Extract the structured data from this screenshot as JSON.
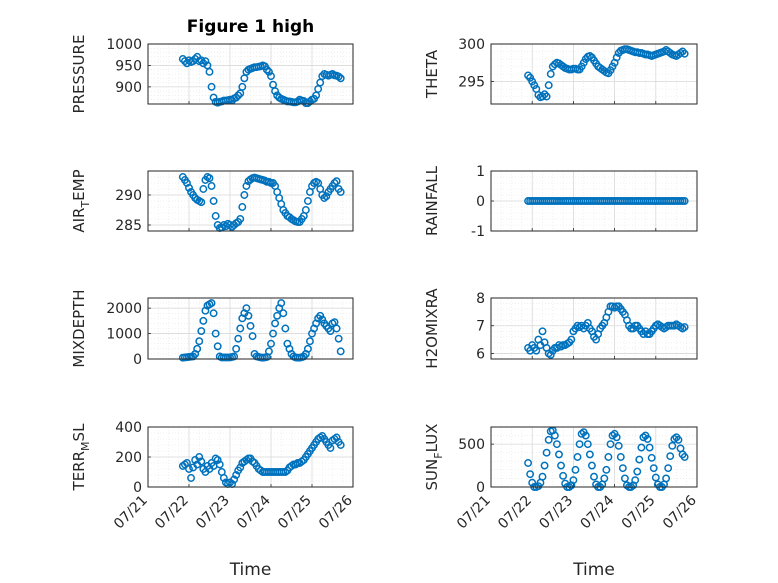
{
  "colors": {
    "marker": "#0072BD"
  },
  "chart_data": [
    {
      "type": "scatter",
      "title": "Figure 1 high",
      "ylabel": "PRESSURE",
      "xlim": [
        0,
        5
      ],
      "ylim": [
        860,
        1000
      ],
      "yticks": [
        {
          "v": 1000,
          "label": "1000"
        },
        {
          "v": 950,
          "label": "950"
        },
        {
          "v": 900,
          "label": "900"
        }
      ],
      "show_xticklabels": false,
      "x": [
        0.85,
        0.9,
        0.95,
        1.0,
        1.05,
        1.1,
        1.15,
        1.2,
        1.25,
        1.3,
        1.35,
        1.4,
        1.45,
        1.5,
        1.55,
        1.6,
        1.65,
        1.7,
        1.75,
        1.8,
        1.85,
        1.9,
        1.95,
        2.0,
        2.05,
        2.1,
        2.15,
        2.2,
        2.25,
        2.3,
        2.35,
        2.4,
        2.45,
        2.5,
        2.55,
        2.6,
        2.65,
        2.7,
        2.75,
        2.8,
        2.85,
        2.9,
        2.95,
        3.0,
        3.05,
        3.1,
        3.15,
        3.2,
        3.25,
        3.3,
        3.35,
        3.4,
        3.45,
        3.5,
        3.55,
        3.6,
        3.65,
        3.7,
        3.75,
        3.8,
        3.85,
        3.9,
        3.95,
        4.0,
        4.05,
        4.1,
        4.15,
        4.2,
        4.25,
        4.3,
        4.35,
        4.4,
        4.45,
        4.5,
        4.55,
        4.6,
        4.65,
        4.7
      ],
      "y": [
        965,
        960,
        955,
        962,
        958,
        960,
        965,
        970,
        960,
        962,
        955,
        960,
        950,
        935,
        900,
        875,
        865,
        863,
        865,
        866,
        868,
        868,
        869,
        870,
        868,
        873,
        875,
        880,
        885,
        900,
        920,
        935,
        940,
        942,
        944,
        946,
        946,
        947,
        948,
        950,
        948,
        940,
        935,
        925,
        905,
        890,
        880,
        875,
        872,
        870,
        868,
        866,
        866,
        865,
        864,
        864,
        866,
        870,
        868,
        867,
        862,
        862,
        866,
        870,
        872,
        880,
        895,
        910,
        925,
        930,
        928,
        926,
        928,
        930,
        927,
        926,
        924,
        920
      ]
    },
    {
      "type": "scatter",
      "title": "",
      "ylabel": "THETA",
      "xlim": [
        0,
        5
      ],
      "ylim": [
        292,
        300
      ],
      "yticks": [
        {
          "v": 300,
          "label": "300"
        },
        {
          "v": 295,
          "label": "295"
        }
      ],
      "show_xticklabels": false,
      "x": [
        0.9,
        0.95,
        1.0,
        1.05,
        1.1,
        1.15,
        1.2,
        1.25,
        1.3,
        1.35,
        1.4,
        1.45,
        1.5,
        1.55,
        1.6,
        1.65,
        1.7,
        1.75,
        1.8,
        1.85,
        1.9,
        1.95,
        2.0,
        2.05,
        2.1,
        2.15,
        2.2,
        2.25,
        2.3,
        2.35,
        2.4,
        2.45,
        2.5,
        2.55,
        2.6,
        2.65,
        2.7,
        2.75,
        2.8,
        2.85,
        2.9,
        2.95,
        3.0,
        3.05,
        3.1,
        3.15,
        3.2,
        3.25,
        3.3,
        3.35,
        3.4,
        3.45,
        3.5,
        3.55,
        3.6,
        3.65,
        3.7,
        3.75,
        3.8,
        3.85,
        3.9,
        3.95,
        4.0,
        4.05,
        4.1,
        4.15,
        4.2,
        4.25,
        4.3,
        4.35,
        4.4,
        4.45,
        4.5,
        4.55,
        4.6,
        4.65,
        4.7
      ],
      "y": [
        295.8,
        295.5,
        295.0,
        294.5,
        294.0,
        293.2,
        292.9,
        293.0,
        293.3,
        293.0,
        294.5,
        296.0,
        297.0,
        297.3,
        297.5,
        297.4,
        297.2,
        297.0,
        296.8,
        296.7,
        296.6,
        296.6,
        296.7,
        296.7,
        296.6,
        296.6,
        297.0,
        297.5,
        298.0,
        298.3,
        298.4,
        298.2,
        297.8,
        297.4,
        297.0,
        296.8,
        296.6,
        296.4,
        296.2,
        296.1,
        296.5,
        297.0,
        297.5,
        298.2,
        298.8,
        299.1,
        299.2,
        299.3,
        299.3,
        299.2,
        299.1,
        299.0,
        298.9,
        298.9,
        298.8,
        298.8,
        298.7,
        298.6,
        298.6,
        298.5,
        298.4,
        298.5,
        298.6,
        298.7,
        298.8,
        298.9,
        299.0,
        299.2,
        299.0,
        298.8,
        298.6,
        298.5,
        298.4,
        298.6,
        298.8,
        299.0,
        298.7
      ]
    },
    {
      "type": "scatter",
      "title": "",
      "ylabel": "AIR_TEMP",
      "ylabel_main": "AIR",
      "ylabel_sub": "T",
      "ylabel_rest": "EMP",
      "xlim": [
        0,
        5
      ],
      "ylim": [
        284,
        294
      ],
      "yticks": [
        {
          "v": 290,
          "label": "290"
        },
        {
          "v": 285,
          "label": "285"
        }
      ],
      "show_xticklabels": false,
      "x": [
        0.85,
        0.9,
        0.95,
        1.0,
        1.05,
        1.1,
        1.15,
        1.2,
        1.25,
        1.3,
        1.35,
        1.4,
        1.45,
        1.5,
        1.55,
        1.6,
        1.65,
        1.7,
        1.75,
        1.8,
        1.85,
        1.9,
        1.95,
        2.0,
        2.05,
        2.1,
        2.15,
        2.2,
        2.25,
        2.3,
        2.35,
        2.4,
        2.45,
        2.5,
        2.55,
        2.6,
        2.65,
        2.7,
        2.75,
        2.8,
        2.85,
        2.9,
        2.95,
        3.0,
        3.05,
        3.1,
        3.15,
        3.2,
        3.25,
        3.3,
        3.35,
        3.4,
        3.45,
        3.5,
        3.55,
        3.6,
        3.65,
        3.7,
        3.75,
        3.8,
        3.85,
        3.9,
        3.95,
        4.0,
        4.05,
        4.1,
        4.15,
        4.2,
        4.25,
        4.3,
        4.35,
        4.4,
        4.45,
        4.5,
        4.55,
        4.6,
        4.65,
        4.7
      ],
      "y": [
        293.0,
        292.5,
        292.0,
        291.2,
        290.5,
        290.0,
        289.5,
        289.2,
        289.0,
        288.8,
        291.0,
        292.5,
        293.0,
        292.8,
        291.5,
        289.0,
        286.5,
        285.0,
        284.5,
        284.6,
        285.0,
        284.8,
        285.2,
        285.0,
        284.7,
        285.0,
        285.3,
        285.5,
        286.0,
        288.0,
        290.0,
        291.5,
        292.3,
        292.6,
        292.8,
        292.9,
        292.8,
        292.7,
        292.6,
        292.5,
        292.4,
        292.2,
        292.2,
        292.0,
        292.0,
        291.5,
        290.5,
        289.5,
        288.5,
        287.5,
        287.0,
        286.5,
        286.3,
        286.0,
        285.8,
        285.6,
        285.5,
        285.5,
        286.0,
        286.5,
        287.5,
        289.0,
        290.5,
        291.5,
        292.0,
        292.2,
        292.0,
        291.0,
        290.0,
        289.5,
        289.8,
        290.5,
        291.0,
        291.5,
        292.0,
        292.3,
        291.0,
        290.5
      ]
    },
    {
      "type": "scatter",
      "title": "",
      "ylabel": "RAINFALL",
      "xlim": [
        0,
        5
      ],
      "ylim": [
        -1,
        1
      ],
      "yticks": [
        {
          "v": 1,
          "label": "1"
        },
        {
          "v": 0,
          "label": "0"
        },
        {
          "v": -1,
          "label": "-1"
        }
      ],
      "show_xticklabels": false,
      "x_start": 0.9,
      "x_end": 4.7,
      "x_step": 0.05,
      "y_const": 0
    },
    {
      "type": "scatter",
      "title": "",
      "ylabel": "MIXDEPTH",
      "xlim": [
        0,
        5
      ],
      "ylim": [
        0,
        2400
      ],
      "yticks": [
        {
          "v": 2000,
          "label": "2000"
        },
        {
          "v": 1000,
          "label": "1000"
        },
        {
          "v": 0,
          "label": "0"
        }
      ],
      "show_xticklabels": false,
      "x": [
        0.85,
        0.9,
        0.95,
        1.0,
        1.05,
        1.1,
        1.15,
        1.2,
        1.25,
        1.3,
        1.35,
        1.4,
        1.45,
        1.5,
        1.55,
        1.6,
        1.65,
        1.7,
        1.75,
        1.8,
        1.85,
        1.9,
        1.95,
        2.0,
        2.05,
        2.1,
        2.15,
        2.2,
        2.25,
        2.3,
        2.35,
        2.4,
        2.45,
        2.5,
        2.55,
        2.6,
        2.65,
        2.7,
        2.75,
        2.8,
        2.85,
        2.9,
        2.95,
        3.0,
        3.05,
        3.1,
        3.15,
        3.2,
        3.25,
        3.3,
        3.35,
        3.4,
        3.45,
        3.5,
        3.55,
        3.6,
        3.65,
        3.7,
        3.75,
        3.8,
        3.85,
        3.9,
        3.95,
        4.0,
        4.05,
        4.1,
        4.15,
        4.2,
        4.25,
        4.3,
        4.35,
        4.4,
        4.45,
        4.5,
        4.55,
        4.6,
        4.65,
        4.7
      ],
      "y": [
        50,
        60,
        70,
        80,
        90,
        100,
        200,
        400,
        700,
        1100,
        1500,
        1900,
        2100,
        2150,
        2200,
        1800,
        1000,
        500,
        100,
        60,
        60,
        60,
        60,
        60,
        80,
        100,
        400,
        800,
        1200,
        1600,
        1800,
        2000,
        1700,
        1300,
        900,
        200,
        100,
        80,
        60,
        50,
        60,
        80,
        300,
        600,
        1000,
        1400,
        1700,
        2000,
        2200,
        1800,
        1200,
        600,
        400,
        200,
        100,
        60,
        50,
        50,
        70,
        100,
        200,
        400,
        700,
        1000,
        1200,
        1400,
        1600,
        1700,
        1550,
        1400,
        1300,
        1200,
        1100,
        1400,
        1450,
        1200,
        800,
        300
      ]
    },
    {
      "type": "scatter",
      "title": "",
      "ylabel": "H2OMIXRA",
      "xlim": [
        0,
        5
      ],
      "ylim": [
        5.8,
        8
      ],
      "yticks": [
        {
          "v": 8,
          "label": "8"
        },
        {
          "v": 7,
          "label": "7"
        },
        {
          "v": 6,
          "label": "6"
        }
      ],
      "show_xticklabels": false,
      "x": [
        0.9,
        0.95,
        1.0,
        1.05,
        1.1,
        1.15,
        1.2,
        1.25,
        1.3,
        1.35,
        1.4,
        1.45,
        1.5,
        1.55,
        1.6,
        1.65,
        1.7,
        1.75,
        1.8,
        1.85,
        1.9,
        1.95,
        2.0,
        2.05,
        2.1,
        2.15,
        2.2,
        2.25,
        2.3,
        2.35,
        2.4,
        2.45,
        2.5,
        2.55,
        2.6,
        2.65,
        2.7,
        2.75,
        2.8,
        2.85,
        2.9,
        2.95,
        3.0,
        3.05,
        3.1,
        3.15,
        3.2,
        3.25,
        3.3,
        3.35,
        3.4,
        3.45,
        3.5,
        3.55,
        3.6,
        3.65,
        3.7,
        3.75,
        3.8,
        3.85,
        3.9,
        3.95,
        4.0,
        4.05,
        4.1,
        4.15,
        4.2,
        4.25,
        4.3,
        4.35,
        4.4,
        4.45,
        4.5,
        4.55,
        4.6,
        4.65,
        4.7
      ],
      "y": [
        6.2,
        6.1,
        6.3,
        6.2,
        6.1,
        6.5,
        6.3,
        6.8,
        6.4,
        6.2,
        6.0,
        5.95,
        6.1,
        6.2,
        6.2,
        6.3,
        6.25,
        6.3,
        6.3,
        6.35,
        6.4,
        6.5,
        6.8,
        6.9,
        7.0,
        6.95,
        7.0,
        6.9,
        7.0,
        7.1,
        6.9,
        6.8,
        6.6,
        6.5,
        6.7,
        6.9,
        7.0,
        7.1,
        7.3,
        7.5,
        7.7,
        7.7,
        7.65,
        7.7,
        7.7,
        7.6,
        7.5,
        7.4,
        7.2,
        7.0,
        6.9,
        6.9,
        7.0,
        7.0,
        6.9,
        6.8,
        6.7,
        6.8,
        6.7,
        6.7,
        6.8,
        6.9,
        7.0,
        7.05,
        7.0,
        6.95,
        6.9,
        6.95,
        7.0,
        7.0,
        7.0,
        7.0,
        7.05,
        7.0,
        6.95,
        6.9,
        6.95
      ]
    },
    {
      "type": "scatter",
      "title": "",
      "ylabel": "TERR_MSL",
      "ylabel_main": "TERR",
      "ylabel_sub": "M",
      "ylabel_rest": "SL",
      "xlabel": "Time",
      "xlim": [
        0,
        5
      ],
      "ylim": [
        0,
        400
      ],
      "yticks": [
        {
          "v": 400,
          "label": "400"
        },
        {
          "v": 200,
          "label": "200"
        },
        {
          "v": 0,
          "label": "0"
        }
      ],
      "show_xticklabels": true,
      "x": [
        0.85,
        0.9,
        0.95,
        1.0,
        1.05,
        1.1,
        1.15,
        1.2,
        1.25,
        1.3,
        1.35,
        1.4,
        1.45,
        1.5,
        1.55,
        1.6,
        1.65,
        1.7,
        1.75,
        1.8,
        1.85,
        1.9,
        1.95,
        2.0,
        2.05,
        2.1,
        2.15,
        2.2,
        2.25,
        2.3,
        2.35,
        2.4,
        2.45,
        2.5,
        2.55,
        2.6,
        2.65,
        2.7,
        2.75,
        2.8,
        2.85,
        2.9,
        2.95,
        3.0,
        3.05,
        3.1,
        3.15,
        3.2,
        3.25,
        3.3,
        3.35,
        3.4,
        3.45,
        3.5,
        3.55,
        3.6,
        3.65,
        3.7,
        3.75,
        3.8,
        3.85,
        3.9,
        3.95,
        4.0,
        4.05,
        4.1,
        4.15,
        4.2,
        4.25,
        4.3,
        4.35,
        4.4,
        4.45,
        4.5,
        4.55,
        4.6,
        4.65,
        4.7
      ],
      "y": [
        140,
        150,
        160,
        120,
        60,
        130,
        180,
        150,
        200,
        170,
        120,
        100,
        140,
        120,
        160,
        140,
        190,
        180,
        150,
        100,
        60,
        30,
        20,
        30,
        20,
        50,
        80,
        110,
        130,
        160,
        170,
        180,
        190,
        190,
        170,
        160,
        140,
        120,
        110,
        100,
        100,
        100,
        100,
        100,
        100,
        100,
        100,
        100,
        100,
        100,
        100,
        110,
        130,
        140,
        150,
        150,
        160,
        160,
        170,
        180,
        200,
        220,
        240,
        260,
        280,
        300,
        320,
        330,
        340,
        320,
        300,
        280,
        260,
        310,
        320,
        330,
        300,
        280
      ]
    },
    {
      "type": "scatter",
      "title": "",
      "ylabel": "SUN_FLUX",
      "ylabel_main": "SUN",
      "ylabel_sub": "F",
      "ylabel_rest": "LUX",
      "xlabel": "Time",
      "xlim": [
        0,
        5
      ],
      "ylim": [
        0,
        700
      ],
      "yticks": [
        {
          "v": 500,
          "label": "500"
        },
        {
          "v": 0,
          "label": "0"
        }
      ],
      "show_xticklabels": true,
      "x": [
        0.9,
        0.95,
        1.0,
        1.05,
        1.1,
        1.15,
        1.2,
        1.25,
        1.3,
        1.35,
        1.4,
        1.45,
        1.5,
        1.55,
        1.6,
        1.65,
        1.7,
        1.75,
        1.8,
        1.85,
        1.9,
        1.95,
        2.0,
        2.05,
        2.1,
        2.15,
        2.2,
        2.25,
        2.3,
        2.35,
        2.4,
        2.45,
        2.5,
        2.55,
        2.6,
        2.65,
        2.7,
        2.75,
        2.8,
        2.85,
        2.9,
        2.95,
        3.0,
        3.05,
        3.1,
        3.15,
        3.2,
        3.25,
        3.3,
        3.35,
        3.4,
        3.45,
        3.5,
        3.55,
        3.6,
        3.65,
        3.7,
        3.75,
        3.8,
        3.85,
        3.9,
        3.95,
        4.0,
        4.05,
        4.1,
        4.15,
        4.2,
        4.25,
        4.3,
        4.35,
        4.4,
        4.45,
        4.5,
        4.55,
        4.6,
        4.65,
        4.7
      ],
      "y": [
        280,
        150,
        50,
        0,
        0,
        10,
        50,
        120,
        250,
        400,
        550,
        650,
        660,
        600,
        500,
        380,
        250,
        130,
        40,
        0,
        0,
        20,
        80,
        200,
        350,
        500,
        620,
        640,
        600,
        500,
        380,
        250,
        120,
        30,
        0,
        0,
        30,
        100,
        200,
        350,
        500,
        600,
        620,
        580,
        480,
        350,
        220,
        100,
        20,
        0,
        0,
        20,
        80,
        180,
        320,
        460,
        580,
        600,
        560,
        460,
        340,
        220,
        110,
        30,
        0,
        0,
        30,
        100,
        220,
        360,
        480,
        560,
        580,
        550,
        450,
        380,
        350
      ]
    }
  ],
  "xticks": [
    "07/21",
    "07/22",
    "07/23",
    "07/24",
    "07/25",
    "07/26"
  ]
}
